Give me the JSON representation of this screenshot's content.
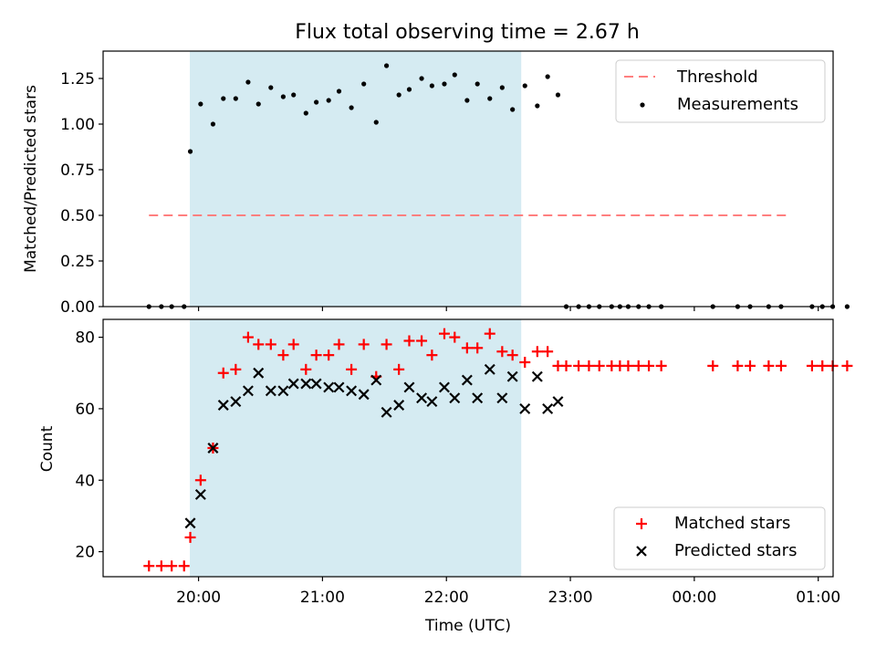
{
  "chart_data": [
    {
      "type": "scatter",
      "title": "Flux total observing time = 2.67 h",
      "xlabel": "",
      "ylabel": "Matched/Predicted stars",
      "ylim": [
        0,
        1.4
      ],
      "yticks": [
        "0.00",
        "0.25",
        "0.50",
        "0.75",
        "1.00",
        "1.25"
      ],
      "shaded_interval": [
        "19:56",
        "22:36"
      ],
      "shade_color": "#add8e6",
      "threshold": {
        "name": "Threshold",
        "value": 0.5,
        "x_start": "19:36",
        "x_end": "00:46",
        "color": "#ff7f7f",
        "style": "dashed"
      },
      "legend": {
        "position": "top-right",
        "entries": [
          "Threshold",
          "Measurements"
        ]
      },
      "series": [
        {
          "name": "Measurements",
          "color": "#000000",
          "marker": "dot",
          "points": [
            [
              "19:36",
              0
            ],
            [
              "19:42",
              0
            ],
            [
              "19:47",
              0
            ],
            [
              "19:53",
              0
            ],
            [
              "19:56",
              0.85
            ],
            [
              "20:01",
              1.11
            ],
            [
              "20:07",
              1.0
            ],
            [
              "20:12",
              1.14
            ],
            [
              "20:18",
              1.14
            ],
            [
              "20:24",
              1.23
            ],
            [
              "20:29",
              1.11
            ],
            [
              "20:35",
              1.2
            ],
            [
              "20:41",
              1.15
            ],
            [
              "20:46",
              1.16
            ],
            [
              "20:52",
              1.06
            ],
            [
              "20:57",
              1.12
            ],
            [
              "21:03",
              1.13
            ],
            [
              "21:08",
              1.18
            ],
            [
              "21:14",
              1.09
            ],
            [
              "21:20",
              1.22
            ],
            [
              "21:26",
              1.01
            ],
            [
              "21:31",
              1.32
            ],
            [
              "21:37",
              1.16
            ],
            [
              "21:42",
              1.19
            ],
            [
              "21:48",
              1.25
            ],
            [
              "21:53",
              1.21
            ],
            [
              "21:59",
              1.22
            ],
            [
              "22:04",
              1.27
            ],
            [
              "22:10",
              1.13
            ],
            [
              "22:15",
              1.22
            ],
            [
              "22:21",
              1.14
            ],
            [
              "22:27",
              1.2
            ],
            [
              "22:32",
              1.08
            ],
            [
              "22:38",
              1.21
            ],
            [
              "22:44",
              1.1
            ],
            [
              "22:49",
              1.26
            ],
            [
              "22:54",
              1.16
            ],
            [
              "22:58",
              0
            ],
            [
              "23:04",
              0
            ],
            [
              "23:09",
              0
            ],
            [
              "23:14",
              0
            ],
            [
              "23:20",
              0
            ],
            [
              "23:24",
              0
            ],
            [
              "23:28",
              0
            ],
            [
              "23:33",
              0
            ],
            [
              "23:38",
              0
            ],
            [
              "23:44",
              0
            ],
            [
              "00:09",
              0
            ],
            [
              "00:21",
              0
            ],
            [
              "00:27",
              0
            ],
            [
              "00:36",
              0
            ],
            [
              "00:42",
              0
            ],
            [
              "00:57",
              0
            ],
            [
              "01:02",
              0
            ],
            [
              "01:07",
              0
            ],
            [
              "01:14",
              0
            ]
          ]
        }
      ]
    },
    {
      "type": "scatter",
      "title": "",
      "xlabel": "Time (UTC)",
      "ylabel": "Count",
      "ylim": [
        13,
        85
      ],
      "yticks": [
        "20",
        "40",
        "60",
        "80"
      ],
      "xticks": [
        "20:00",
        "21:00",
        "22:00",
        "23:00",
        "00:00",
        "01:00"
      ],
      "shaded_interval": [
        "19:56",
        "22:36"
      ],
      "shade_color": "#add8e6",
      "legend": {
        "position": "bottom-right",
        "entries": [
          "Matched stars",
          "Predicted stars"
        ]
      },
      "series": [
        {
          "name": "Matched stars",
          "color": "#ff0000",
          "marker": "plus",
          "points": [
            [
              "19:36",
              16
            ],
            [
              "19:42",
              16
            ],
            [
              "19:47",
              16
            ],
            [
              "19:53",
              16
            ],
            [
              "19:56",
              24
            ],
            [
              "20:01",
              40
            ],
            [
              "20:07",
              49
            ],
            [
              "20:12",
              70
            ],
            [
              "20:18",
              71
            ],
            [
              "20:24",
              80
            ],
            [
              "20:29",
              78
            ],
            [
              "20:35",
              78
            ],
            [
              "20:41",
              75
            ],
            [
              "20:46",
              78
            ],
            [
              "20:52",
              71
            ],
            [
              "20:57",
              75
            ],
            [
              "21:03",
              75
            ],
            [
              "21:08",
              78
            ],
            [
              "21:14",
              71
            ],
            [
              "21:20",
              78
            ],
            [
              "21:26",
              69
            ],
            [
              "21:31",
              78
            ],
            [
              "21:37",
              71
            ],
            [
              "21:42",
              79
            ],
            [
              "21:48",
              79
            ],
            [
              "21:53",
              75
            ],
            [
              "21:59",
              81
            ],
            [
              "22:04",
              80
            ],
            [
              "22:10",
              77
            ],
            [
              "22:15",
              77
            ],
            [
              "22:21",
              81
            ],
            [
              "22:27",
              76
            ],
            [
              "22:32",
              75
            ],
            [
              "22:38",
              73
            ],
            [
              "22:44",
              76
            ],
            [
              "22:49",
              76
            ],
            [
              "22:54",
              72
            ],
            [
              "22:58",
              72
            ],
            [
              "23:04",
              72
            ],
            [
              "23:09",
              72
            ],
            [
              "23:14",
              72
            ],
            [
              "23:20",
              72
            ],
            [
              "23:24",
              72
            ],
            [
              "23:28",
              72
            ],
            [
              "23:33",
              72
            ],
            [
              "23:38",
              72
            ],
            [
              "23:44",
              72
            ],
            [
              "00:09",
              72
            ],
            [
              "00:21",
              72
            ],
            [
              "00:27",
              72
            ],
            [
              "00:36",
              72
            ],
            [
              "00:42",
              72
            ],
            [
              "00:57",
              72
            ],
            [
              "01:02",
              72
            ],
            [
              "01:07",
              72
            ],
            [
              "01:14",
              72
            ]
          ]
        },
        {
          "name": "Predicted stars",
          "color": "#000000",
          "marker": "x",
          "points": [
            [
              "19:56",
              28
            ],
            [
              "20:01",
              36
            ],
            [
              "20:07",
              49
            ],
            [
              "20:12",
              61
            ],
            [
              "20:18",
              62
            ],
            [
              "20:24",
              65
            ],
            [
              "20:29",
              70
            ],
            [
              "20:35",
              65
            ],
            [
              "20:41",
              65
            ],
            [
              "20:46",
              67
            ],
            [
              "20:52",
              67
            ],
            [
              "20:57",
              67
            ],
            [
              "21:03",
              66
            ],
            [
              "21:08",
              66
            ],
            [
              "21:14",
              65
            ],
            [
              "21:20",
              64
            ],
            [
              "21:26",
              68
            ],
            [
              "21:31",
              59
            ],
            [
              "21:37",
              61
            ],
            [
              "21:42",
              66
            ],
            [
              "21:48",
              63
            ],
            [
              "21:53",
              62
            ],
            [
              "21:59",
              66
            ],
            [
              "22:04",
              63
            ],
            [
              "22:10",
              68
            ],
            [
              "22:15",
              63
            ],
            [
              "22:21",
              71
            ],
            [
              "22:27",
              63
            ],
            [
              "22:32",
              69
            ],
            [
              "22:38",
              60
            ],
            [
              "22:44",
              69
            ],
            [
              "22:49",
              60
            ],
            [
              "22:54",
              62
            ]
          ]
        }
      ]
    }
  ]
}
